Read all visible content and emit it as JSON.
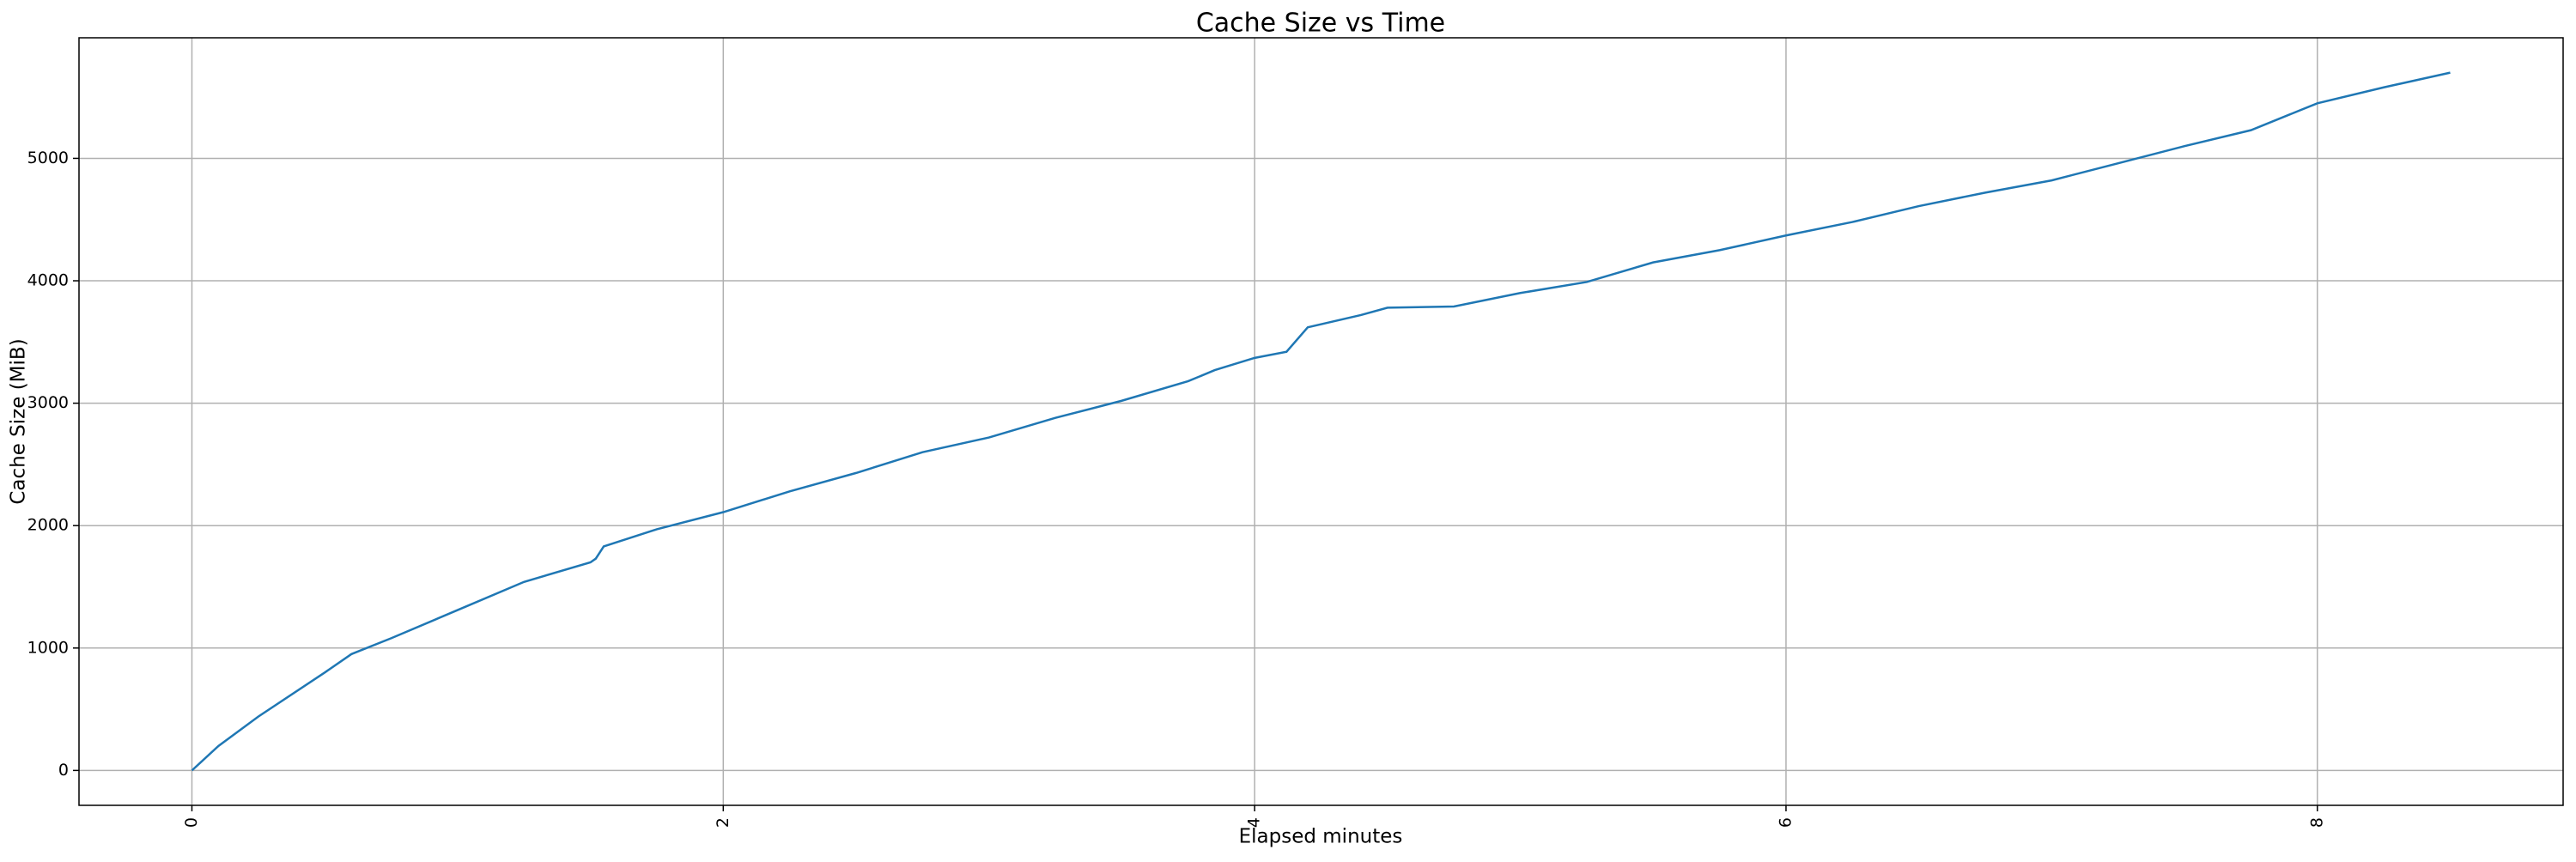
{
  "chart_data": {
    "type": "line",
    "title": "Cache Size vs Time",
    "x_label": "Elapsed minutes",
    "y_label": "Cache Size (MiB)",
    "x": [
      0,
      0.1,
      0.25,
      0.5,
      0.6,
      0.75,
      1.0,
      1.25,
      1.5,
      1.52,
      1.55,
      1.75,
      2.0,
      2.25,
      2.5,
      2.75,
      3.0,
      3.25,
      3.5,
      3.75,
      3.85,
      4.0,
      4.12,
      4.2,
      4.4,
      4.5,
      4.75,
      5.0,
      5.25,
      5.5,
      5.75,
      6.0,
      6.25,
      6.5,
      6.75,
      7.0,
      7.25,
      7.5,
      7.75,
      8.0,
      8.25,
      8.5
    ],
    "series": [
      {
        "name": "Cache Size",
        "color": "#1f77b4",
        "values": [
          0,
          200,
          440,
          800,
          950,
          1080,
          1310,
          1540,
          1700,
          1730,
          1830,
          1970,
          2110,
          2280,
          2430,
          2600,
          2720,
          2880,
          3020,
          3180,
          3270,
          3370,
          3420,
          3620,
          3720,
          3780,
          3790,
          3900,
          3990,
          4150,
          4250,
          4370,
          4480,
          4610,
          4720,
          4820,
          4960,
          5100,
          5230,
          5450,
          5580,
          5700
        ]
      }
    ],
    "xlim": [
      -0.425,
      8.925
    ],
    "ylim": [
      -285,
      5985
    ],
    "xticks": [
      0,
      2,
      4,
      6,
      8
    ],
    "yticks": [
      0,
      1000,
      2000,
      3000,
      4000,
      5000
    ],
    "grid": true
  }
}
